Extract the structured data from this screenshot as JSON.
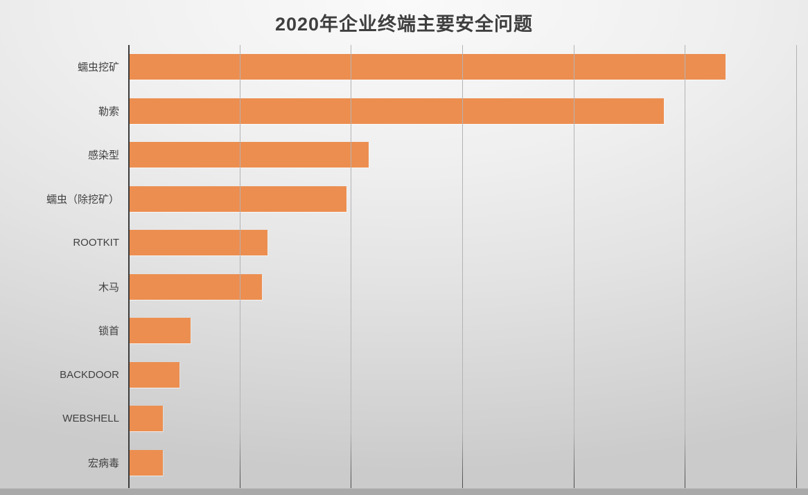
{
  "chart_data": {
    "type": "bar",
    "orientation": "horizontal",
    "title": "2020年企业终端主要安全问题",
    "categories": [
      "蠕虫挖矿",
      "勒索",
      "感染型",
      "蠕虫（除挖矿）",
      "ROOTKIT",
      "木马",
      "锁首",
      "BACKDOOR",
      "WEBSHELL",
      "宏病毒"
    ],
    "values": [
      53.5,
      48.0,
      21.5,
      19.5,
      12.4,
      11.9,
      5.5,
      4.5,
      3.0,
      3.0
    ],
    "xlabel": "",
    "ylabel": "",
    "xlim": [
      0,
      60
    ],
    "gridline_interval": 10,
    "grid": "vertical-only",
    "legend_position": "none",
    "tick_labels_visible": false
  },
  "colors": {
    "bar": "#EC8E50",
    "title": "#3F3F3F",
    "label": "#404040",
    "axis": "#3A3A3A",
    "gridline": "#B3B3B3",
    "tick": "#4A4A4A",
    "bottom_strip": "#A9A9A9"
  }
}
